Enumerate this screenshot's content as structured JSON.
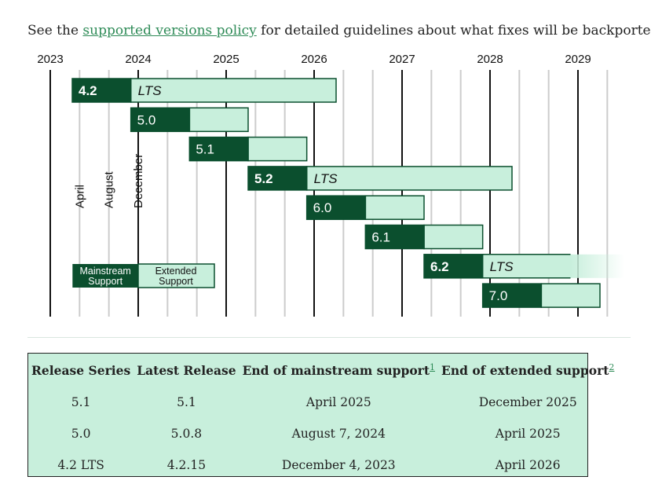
{
  "intro": {
    "before": "See the ",
    "link": "supported versions policy",
    "after": " for detailed guidelines about what fixes will be backported."
  },
  "chart_data": {
    "type": "timeline",
    "years": [
      "2023",
      "2024",
      "2025",
      "2026",
      "2027",
      "2028",
      "2029"
    ],
    "month_markers": [
      "April",
      "August",
      "December"
    ],
    "releases": [
      {
        "label": "4.2",
        "lts": true,
        "start": "2023-04",
        "mainstream_end": "2023-12",
        "extended_end": "2026-04"
      },
      {
        "label": "5.0",
        "lts": false,
        "start": "2023-12",
        "mainstream_end": "2024-08",
        "extended_end": "2025-04"
      },
      {
        "label": "5.1",
        "lts": false,
        "start": "2024-08",
        "mainstream_end": "2025-04",
        "extended_end": "2025-12"
      },
      {
        "label": "5.2",
        "lts": true,
        "start": "2025-04",
        "mainstream_end": "2025-12",
        "extended_end": "2028-04"
      },
      {
        "label": "6.0",
        "lts": false,
        "start": "2025-12",
        "mainstream_end": "2026-08",
        "extended_end": "2027-04"
      },
      {
        "label": "6.1",
        "lts": false,
        "start": "2026-08",
        "mainstream_end": "2027-04",
        "extended_end": "2027-12"
      },
      {
        "label": "6.2",
        "lts": true,
        "start": "2027-04",
        "mainstream_end": "2027-12",
        "extended_end": "2029-12",
        "fade": true
      },
      {
        "label": "7.0",
        "lts": false,
        "start": "2027-12",
        "mainstream_end": "2028-08",
        "extended_end": "2029-04"
      }
    ],
    "lts_label": "LTS",
    "legend": {
      "mainstream": "Mainstream Support",
      "extended": "Extended Support"
    },
    "colors": {
      "mainstream": "#0b4f2e",
      "extended": "#c8efdc",
      "year_line": "#111111",
      "month_line": "#cccccc"
    }
  },
  "table": {
    "headers": [
      "Release Series",
      "Latest Release",
      "End of mainstream support",
      "End of extended support"
    ],
    "footnotes": [
      "1",
      "2"
    ],
    "rows": [
      [
        "5.1",
        "5.1",
        "April 2025",
        "December 2025"
      ],
      [
        "5.0",
        "5.0.8",
        "August 7, 2024",
        "April 2025"
      ],
      [
        "4.2 LTS",
        "4.2.15",
        "December 4, 2023",
        "April 2026"
      ]
    ]
  }
}
